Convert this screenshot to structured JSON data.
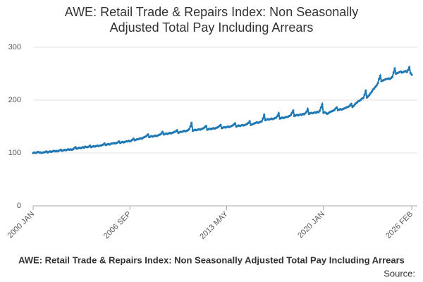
{
  "chart_data": {
    "type": "line",
    "title": [
      "AWE: Retail Trade & Repairs Index: Non Seasonally",
      "Adjusted Total Pay Including Arrears"
    ],
    "footer_title": "AWE: Retail Trade & Repairs Index: Non Seasonally Adjusted Total Pay Including Arrears",
    "source": "Source:",
    "color": "#1f78b4",
    "ylim": [
      0,
      300
    ],
    "yticks": [
      0,
      100,
      200,
      300
    ],
    "grid": true,
    "categories": [
      "2000 JAN",
      null,
      null,
      null,
      null,
      null,
      null,
      null,
      null,
      null,
      null,
      null,
      null,
      null,
      null,
      null,
      null,
      null,
      null,
      null,
      null,
      null,
      null,
      null,
      null,
      null,
      null,
      null,
      null,
      null,
      null,
      null,
      null,
      null,
      null,
      null,
      null,
      null,
      null,
      null,
      null,
      null,
      null,
      null,
      null,
      null,
      null,
      null,
      null,
      null,
      null,
      null,
      null,
      null,
      null,
      null,
      null,
      null,
      null,
      null,
      null,
      null,
      null,
      null,
      null,
      null,
      null,
      null,
      null,
      null,
      null,
      null,
      null,
      null,
      null,
      null,
      null,
      null,
      null,
      null,
      "2006 SEP",
      null,
      null,
      null,
      null,
      null,
      null,
      null,
      null,
      null,
      null,
      null,
      null,
      null,
      null,
      null,
      null,
      null,
      null,
      null,
      null,
      null,
      null,
      null,
      null,
      null,
      null,
      null,
      null,
      null,
      null,
      null,
      null,
      null,
      null,
      null,
      null,
      null,
      null,
      null,
      null,
      null,
      null,
      null,
      null,
      null,
      null,
      null,
      null,
      null,
      null,
      null,
      null,
      null,
      null,
      null,
      null,
      null,
      null,
      null,
      null,
      null,
      null,
      null,
      null,
      null,
      null,
      null,
      null,
      null,
      null,
      null,
      null,
      null,
      null,
      null,
      null,
      null,
      null,
      null,
      "2013 MAY",
      null,
      null,
      null,
      null,
      null,
      null,
      null,
      null,
      null,
      null,
      null,
      null,
      null,
      null,
      null,
      null,
      null,
      null,
      null,
      null,
      null,
      null,
      null,
      null,
      null,
      null,
      null,
      null,
      null,
      null,
      null,
      null,
      null,
      null,
      null,
      null,
      null,
      null,
      null,
      null,
      null,
      null,
      null,
      null,
      null,
      null,
      null,
      null,
      null,
      null,
      null,
      null,
      null,
      null,
      null,
      null,
      null,
      null,
      null,
      null,
      null,
      null,
      null,
      null,
      null,
      null,
      null,
      null,
      null,
      null,
      null,
      null,
      null,
      null,
      null,
      null,
      null,
      null,
      null,
      "2020 JAN",
      null,
      null,
      null,
      null,
      null,
      null,
      null,
      null,
      null,
      null,
      null,
      null,
      null,
      null,
      null,
      null,
      null,
      null,
      null,
      null,
      null,
      null,
      null,
      null,
      null,
      null,
      null,
      null,
      null,
      null,
      null,
      null,
      null,
      null,
      null,
      null,
      null,
      null,
      null,
      null,
      null,
      null,
      null,
      null,
      null,
      null,
      null,
      null,
      null,
      null,
      null,
      null,
      null,
      null,
      null,
      null,
      null,
      null,
      null,
      null,
      null,
      null,
      null,
      null,
      null,
      null,
      null,
      null,
      null,
      null,
      null,
      null,
      "2026 FEB"
    ],
    "values": [
      100,
      101,
      100,
      101,
      102,
      101,
      101,
      100,
      101,
      101,
      102,
      103,
      101,
      102,
      103,
      102,
      103,
      104,
      103,
      104,
      103,
      104,
      105,
      106,
      104,
      105,
      106,
      105,
      106,
      107,
      106,
      107,
      106,
      107,
      109,
      111,
      108,
      109,
      110,
      109,
      110,
      111,
      110,
      112,
      111,
      111,
      112,
      114,
      111,
      112,
      113,
      112,
      113,
      114,
      113,
      114,
      114,
      115,
      116,
      118,
      115,
      116,
      117,
      116,
      117,
      118,
      118,
      119,
      118,
      119,
      120,
      122,
      119,
      120,
      121,
      120,
      121,
      122,
      122,
      123,
      122,
      123,
      125,
      127,
      124,
      125,
      126,
      126,
      127,
      128,
      127,
      129,
      130,
      131,
      133,
      135,
      130,
      131,
      132,
      131,
      132,
      133,
      132,
      133,
      134,
      135,
      137,
      140,
      135,
      136,
      137,
      136,
      137,
      138,
      137,
      138,
      139,
      140,
      141,
      143,
      138,
      139,
      140,
      140,
      141,
      142,
      141,
      142,
      143,
      145,
      150,
      157,
      142,
      143,
      144,
      143,
      144,
      145,
      144,
      145,
      146,
      147,
      149,
      151,
      144,
      145,
      146,
      145,
      146,
      147,
      146,
      147,
      148,
      149,
      151,
      153,
      147,
      148,
      149,
      148,
      149,
      150,
      149,
      150,
      151,
      152,
      154,
      156,
      150,
      151,
      152,
      151,
      152,
      153,
      152,
      153,
      154,
      155,
      157,
      160,
      153,
      154,
      155,
      156,
      157,
      158,
      157,
      158,
      159,
      160,
      165,
      172,
      162,
      163,
      164,
      163,
      164,
      165,
      164,
      165,
      166,
      167,
      170,
      175,
      165,
      166,
      167,
      166,
      167,
      168,
      168,
      169,
      170,
      172,
      176,
      180,
      170,
      171,
      172,
      171,
      172,
      173,
      172,
      174,
      173,
      175,
      178,
      183,
      174,
      175,
      176,
      175,
      176,
      177,
      176,
      178,
      177,
      180,
      186,
      192,
      176,
      177,
      176,
      174,
      175,
      177,
      178,
      179,
      180,
      181,
      184,
      186,
      181,
      182,
      183,
      182,
      183,
      184,
      185,
      186,
      187,
      188,
      190,
      193,
      187,
      189,
      192,
      194,
      196,
      198,
      199,
      201,
      203,
      204,
      210,
      218,
      205,
      207,
      210,
      213,
      216,
      220,
      222,
      225,
      228,
      232,
      240,
      246,
      236,
      237,
      238,
      239,
      240,
      240,
      241,
      240,
      242,
      244,
      252,
      260,
      250,
      251,
      252,
      253,
      254,
      252,
      253,
      254,
      255,
      253,
      257,
      262,
      251,
      248
    ]
  }
}
